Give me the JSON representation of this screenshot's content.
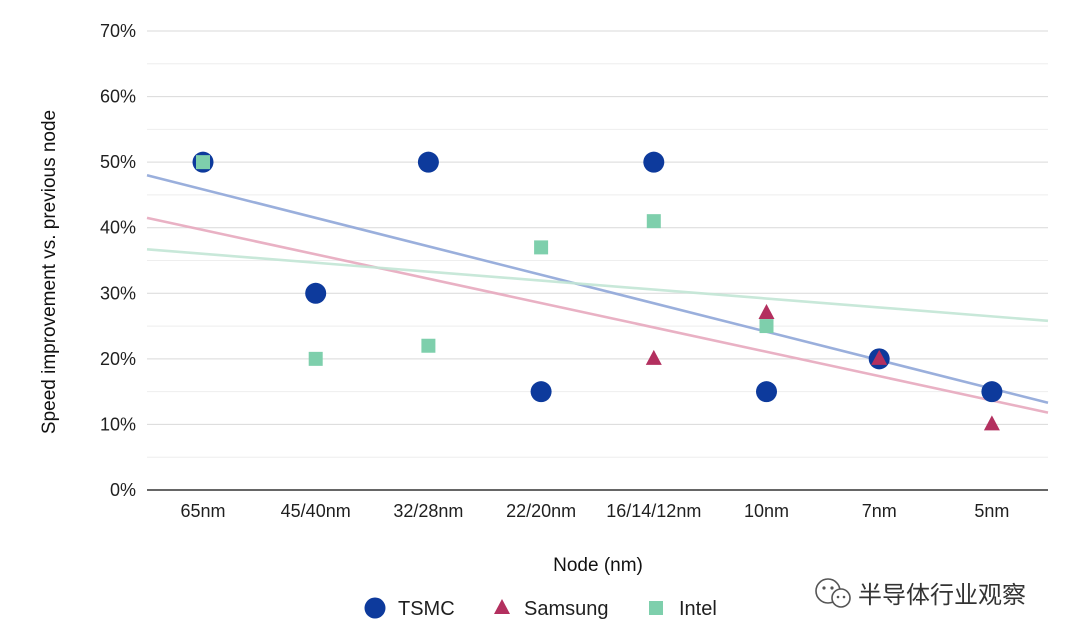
{
  "chart_data": {
    "type": "scatter",
    "xlabel": "Node (nm)",
    "ylabel": "Speed improvement vs. previous node",
    "categories": [
      "65nm",
      "45/40nm",
      "32/28nm",
      "22/20nm",
      "16/14/12nm",
      "10nm",
      "7nm",
      "5nm"
    ],
    "y_ticks": [
      "0%",
      "10%",
      "20%",
      "30%",
      "40%",
      "50%",
      "60%",
      "70%"
    ],
    "ylim": [
      0,
      70
    ],
    "grid": true,
    "legend_position": "bottom",
    "series": [
      {
        "name": "TSMC",
        "marker": "circle",
        "color": "#0d3a9c",
        "values": [
          50,
          30,
          50,
          15,
          50,
          15,
          20,
          15
        ],
        "trendline": {
          "color": "#8fa6d8",
          "start": 48.0,
          "end": 13.3
        }
      },
      {
        "name": "Samsung",
        "marker": "triangle",
        "color": "#b3305f",
        "values": [
          null,
          null,
          null,
          null,
          20,
          27,
          20,
          10
        ],
        "trendline": {
          "color": "#e7a9be",
          "start": 41.5,
          "end": 11.8
        }
      },
      {
        "name": "Intel",
        "marker": "square",
        "color": "#7ecfac",
        "values": [
          50,
          20,
          22,
          37,
          41,
          25,
          null,
          null
        ],
        "trendline": {
          "color": "#c2e6d5",
          "start": 36.7,
          "end": 25.8
        }
      }
    ]
  },
  "watermark": {
    "text": "半导体行业观察",
    "icon": "wechat-icon"
  }
}
